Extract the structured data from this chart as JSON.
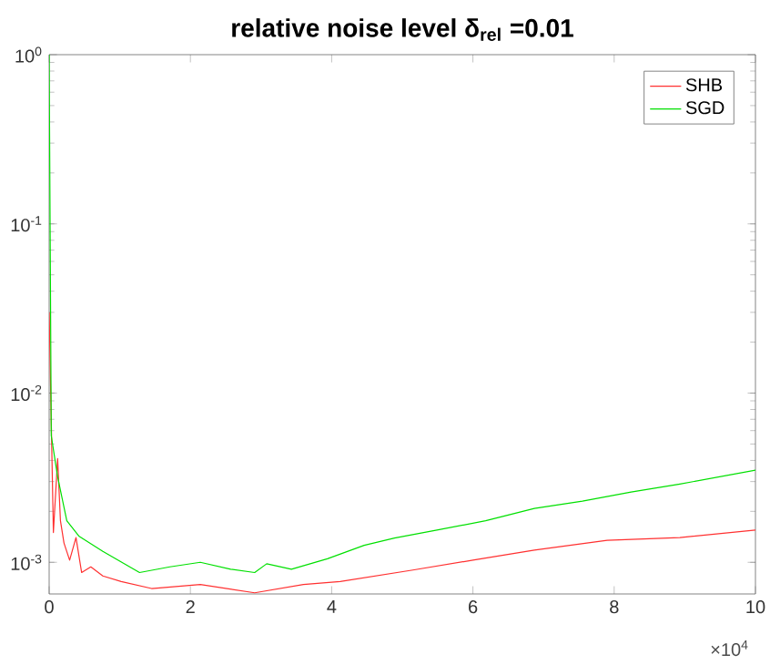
{
  "chart_data": {
    "type": "line",
    "title": "relative noise level δ$_{rel}$ =0.01",
    "annotations": [
      "×10$^{4}$"
    ],
    "xlim": [
      0,
      10
    ],
    "xticks": [
      0,
      2,
      4,
      6,
      8,
      10
    ],
    "ylim": [
      0.00065,
      1
    ],
    "log": "y",
    "yticks": [
      {
        "value": 0.001,
        "label": "10$^{-3}$"
      },
      {
        "value": 0.01,
        "label": "10$^{-2}$"
      },
      {
        "value": 0.1,
        "label": "10$^{-1}$"
      },
      {
        "value": 1,
        "label": "10$^{0}$"
      }
    ],
    "legend": "top right",
    "grid": false,
    "marker": "none",
    "line_style": "solid",
    "series": [
      {
        "name": "SHB",
        "color": "#ff3030",
        "x": [
          0,
          0.06,
          0.12,
          0.16,
          0.21,
          0.29,
          0.38,
          0.46,
          0.59,
          0.76,
          1.02,
          1.45,
          2.14,
          2.91,
          3.6,
          4.12,
          5.15,
          6.0,
          6.87,
          7.9,
          8.93,
          10
        ],
        "values": [
          0.03,
          0.0015,
          0.0041,
          0.00176,
          0.0013,
          0.00103,
          0.0014,
          0.00087,
          0.00094,
          0.00083,
          0.00077,
          0.0007,
          0.00074,
          0.00066,
          0.00074,
          0.00077,
          0.0009,
          0.00103,
          0.00118,
          0.00135,
          0.0014,
          0.00155
        ]
      },
      {
        "name": "SGD",
        "color": "#00e000",
        "x": [
          0,
          0.03,
          0.12,
          0.25,
          0.42,
          0.76,
          1.28,
          1.71,
          2.14,
          2.57,
          2.91,
          3.08,
          3.43,
          3.94,
          4.46,
          4.89,
          5.49,
          6.18,
          6.87,
          7.55,
          8.24,
          8.93,
          10
        ],
        "values": [
          1,
          0.0056,
          0.0032,
          0.00176,
          0.00143,
          0.00116,
          0.00087,
          0.00094,
          0.001,
          0.00091,
          0.00087,
          0.00098,
          0.00091,
          0.00105,
          0.00126,
          0.00139,
          0.00155,
          0.00176,
          0.00208,
          0.0023,
          0.0026,
          0.0029,
          0.0035
        ]
      }
    ]
  }
}
